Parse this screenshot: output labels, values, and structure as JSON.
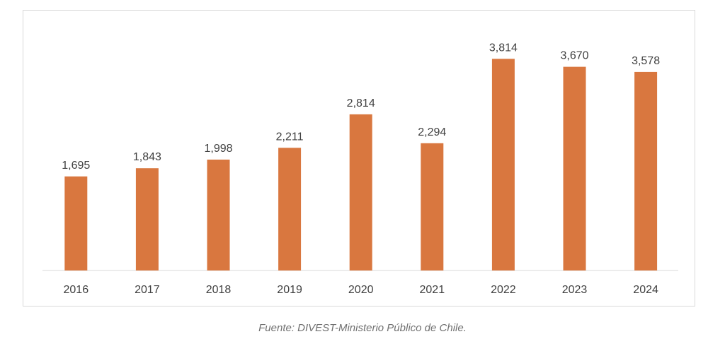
{
  "chart_data": {
    "type": "bar",
    "categories": [
      "2016",
      "2017",
      "2018",
      "2019",
      "2020",
      "2021",
      "2022",
      "2023",
      "2024"
    ],
    "values": [
      1695,
      1843,
      1998,
      2211,
      2814,
      2294,
      3814,
      3670,
      3578
    ],
    "value_labels": [
      "1,695",
      "1,843",
      "1,998",
      "2,211",
      "2,814",
      "2,294",
      "3,814",
      "3,670",
      "3,578"
    ],
    "title": "",
    "xlabel": "",
    "ylabel": "",
    "ylim": [
      0,
      4200
    ],
    "grid": false,
    "legend": "none",
    "bar_color": "#D9773F"
  },
  "source": "Fuente: DIVEST-Ministerio Público de Chile."
}
